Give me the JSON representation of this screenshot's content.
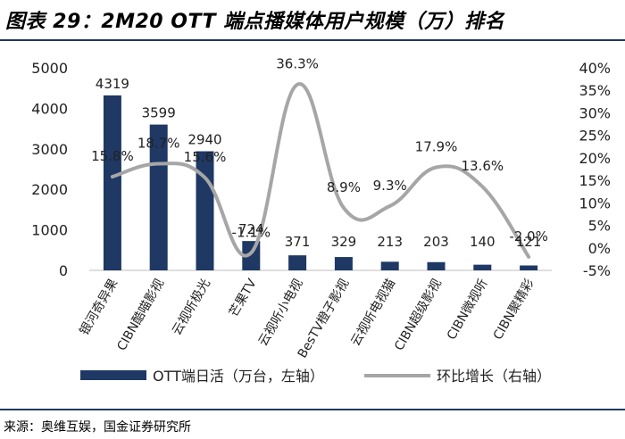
{
  "title": "图表 29：2M20 OTT 端点播媒体用户规模（万）排名",
  "source": "来源：奥维互娱，国金证券研究所",
  "chart_data": {
    "type": "bar",
    "categories": [
      "银河奇异果",
      "CIBN酷喵影视",
      "云视听极光",
      "芒果TV",
      "云视听小电视",
      "BesTV橙子影视",
      "云视听电视猫",
      "CIBN超级影视",
      "CIBN微视听",
      "CIBN聚精彩"
    ],
    "series": [
      {
        "name": "OTT端日活（万台，左轴）",
        "type": "bar",
        "axis": "left",
        "values": [
          4319,
          3599,
          2940,
          724,
          371,
          329,
          213,
          203,
          140,
          121
        ],
        "labels": [
          "4319",
          "3599",
          "2940",
          "724",
          "371",
          "329",
          "213",
          "203",
          "140",
          "121"
        ]
      },
      {
        "name": "环比增长（右轴）",
        "type": "line",
        "axis": "right",
        "values": [
          15.8,
          18.7,
          15.6,
          -1.1,
          36.3,
          8.9,
          9.3,
          17.9,
          13.6,
          -2.0
        ],
        "labels": [
          "15.8%",
          "18.7%",
          "15.6%",
          "-1.1%",
          "36.3%",
          "8.9%",
          "9.3%",
          "17.9%",
          "13.6%",
          "-2.0%"
        ]
      }
    ],
    "left_axis": {
      "min": 0,
      "max": 5000,
      "ticks": [
        0,
        1000,
        2000,
        3000,
        4000,
        5000
      ],
      "tick_labels": [
        "0",
        "1000",
        "2000",
        "3000",
        "4000",
        "5000"
      ]
    },
    "right_axis": {
      "min": -5,
      "max": 40,
      "ticks": [
        -5,
        0,
        5,
        10,
        15,
        20,
        25,
        30,
        35,
        40
      ],
      "tick_labels": [
        "-5%",
        "0%",
        "5%",
        "10%",
        "15%",
        "20%",
        "25%",
        "30%",
        "35%",
        "40%"
      ]
    },
    "legend_position": "bottom",
    "colors": {
      "bar": "#1f3864",
      "line": "#a6a6a6"
    }
  }
}
